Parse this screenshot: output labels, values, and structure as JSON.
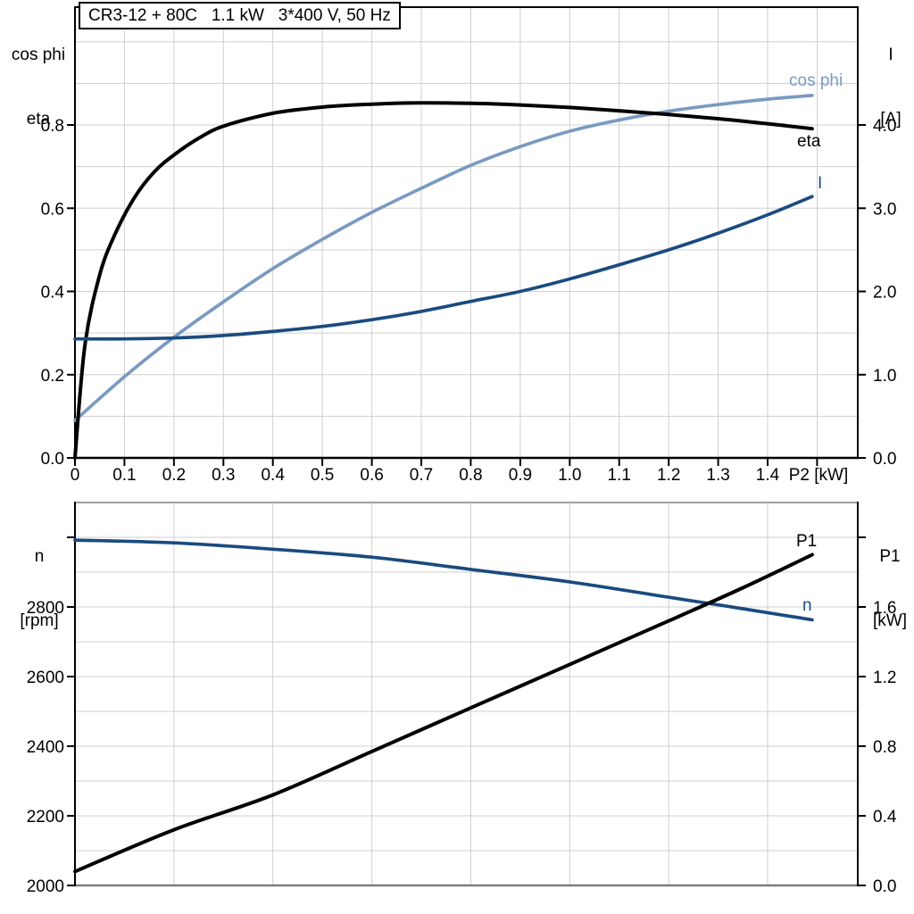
{
  "title_box": {
    "text": "CR3-12 + 80C   1.1 kW   3*400 V, 50 Hz"
  },
  "axes_headers": {
    "top_left_line1": "cos phi",
    "top_left_line2": "eta",
    "top_right_line1": "I",
    "top_right_line2": "[A]",
    "bottom_left_line1": "n",
    "bottom_left_line2": "[rpm]",
    "bottom_right_line1": "P1",
    "bottom_right_line2": "[kW]"
  },
  "colors": {
    "curve_black": "#000000",
    "curve_light_blue": "#7a9ac0",
    "curve_dark_blue": "#1a4b7f",
    "grid": "#cfcfcf",
    "axis": "#000000",
    "frame_gray_top": "#9e9e9e",
    "frame_gray_bottom": "#7f7f7f",
    "text": "#000000"
  },
  "chart_data": [
    {
      "type": "line",
      "title": "CR3-12 + 80C   1.1 kW   3*400 V, 50 Hz",
      "x_axis": {
        "label": "P2 [kW]",
        "min": 0,
        "max": 1.58,
        "grid_step": 0.1,
        "tick_values": [
          0,
          0.1,
          0.2,
          0.3,
          0.4,
          0.5,
          0.6,
          0.7,
          0.8,
          0.9,
          1.0,
          1.1,
          1.2,
          1.3,
          1.4,
          1.5
        ],
        "tick_labels": [
          "0",
          "0.1",
          "0.2",
          "0.3",
          "0.4",
          "0.5",
          "0.6",
          "0.7",
          "0.8",
          "0.9",
          "1.0",
          "1.1",
          "1.2",
          "1.3",
          "1.4",
          ""
        ]
      },
      "y_left": {
        "name": "cos phi / eta",
        "min": 0,
        "max": 1.083,
        "grid_step": 0.1,
        "tick_values": [
          0,
          0.2,
          0.4,
          0.6,
          0.8
        ],
        "tick_labels": [
          "0.0",
          "0.2",
          "0.4",
          "0.6",
          "0.8"
        ]
      },
      "y_right": {
        "name": "I [A]",
        "min": 0,
        "max": 5.42,
        "tick_values": [
          0,
          1,
          2,
          3,
          4
        ],
        "tick_labels": [
          "0.0",
          "1.0",
          "2.0",
          "3.0",
          "4.0"
        ]
      },
      "grid": true,
      "legend_position": "curve-end-labels",
      "series": [
        {
          "name": "cos phi",
          "label": "cos phi",
          "axis": "left",
          "color": "#7a9ac0",
          "stroke_width": 3.7,
          "points": [
            [
              0,
              0.09
            ],
            [
              0.1,
              0.195
            ],
            [
              0.2,
              0.29
            ],
            [
              0.3,
              0.375
            ],
            [
              0.4,
              0.455
            ],
            [
              0.5,
              0.525
            ],
            [
              0.6,
              0.59
            ],
            [
              0.7,
              0.648
            ],
            [
              0.8,
              0.703
            ],
            [
              0.9,
              0.748
            ],
            [
              1.0,
              0.785
            ],
            [
              1.1,
              0.812
            ],
            [
              1.2,
              0.833
            ],
            [
              1.3,
              0.849
            ],
            [
              1.4,
              0.862
            ],
            [
              1.49,
              0.871
            ]
          ]
        },
        {
          "name": "eta",
          "label": "eta",
          "axis": "left",
          "color": "#000000",
          "stroke_width": 4,
          "points": [
            [
              0,
              0
            ],
            [
              0.02,
              0.27
            ],
            [
              0.05,
              0.44
            ],
            [
              0.08,
              0.535
            ],
            [
              0.12,
              0.625
            ],
            [
              0.16,
              0.687
            ],
            [
              0.2,
              0.728
            ],
            [
              0.25,
              0.768
            ],
            [
              0.3,
              0.797
            ],
            [
              0.4,
              0.828
            ],
            [
              0.5,
              0.843
            ],
            [
              0.6,
              0.85
            ],
            [
              0.7,
              0.853
            ],
            [
              0.8,
              0.852
            ],
            [
              0.9,
              0.848
            ],
            [
              1.0,
              0.842
            ],
            [
              1.1,
              0.834
            ],
            [
              1.2,
              0.825
            ],
            [
              1.3,
              0.815
            ],
            [
              1.4,
              0.803
            ],
            [
              1.49,
              0.791
            ]
          ]
        },
        {
          "name": "I",
          "label": "I",
          "axis": "right",
          "color": "#1a4b7f",
          "stroke_width": 3.7,
          "points": [
            [
              0,
              1.43
            ],
            [
              0.1,
              1.43
            ],
            [
              0.2,
              1.44
            ],
            [
              0.3,
              1.47
            ],
            [
              0.4,
              1.52
            ],
            [
              0.5,
              1.58
            ],
            [
              0.6,
              1.66
            ],
            [
              0.7,
              1.76
            ],
            [
              0.8,
              1.88
            ],
            [
              0.9,
              2.0
            ],
            [
              1.0,
              2.15
            ],
            [
              1.1,
              2.32
            ],
            [
              1.2,
              2.5
            ],
            [
              1.3,
              2.7
            ],
            [
              1.4,
              2.92
            ],
            [
              1.49,
              3.14
            ]
          ]
        }
      ]
    },
    {
      "type": "line",
      "title": "",
      "x_axis": {
        "label": "",
        "min": 0,
        "max": 1.58,
        "grid_step": 0.2,
        "tick_values": [],
        "tick_labels": []
      },
      "y_left": {
        "name": "n [rpm]",
        "min": 2000,
        "max": 3100,
        "grid_step": 100,
        "tick_values": [
          2000,
          2200,
          2400,
          2600,
          2800,
          3000
        ],
        "tick_labels": [
          "2000",
          "2200",
          "2400",
          "2600",
          "2800",
          ""
        ]
      },
      "y_right": {
        "name": "P1 [kW]",
        "min": 0,
        "max": 2.2,
        "tick_values": [
          0,
          0.4,
          0.8,
          1.2,
          1.6,
          2.0
        ],
        "tick_labels": [
          "0.0",
          "0.4",
          "0.8",
          "1.2",
          "1.6",
          ""
        ]
      },
      "grid": true,
      "legend_position": "curve-end-labels",
      "series": [
        {
          "name": "n",
          "label": "n",
          "axis": "left",
          "color": "#1a4b7f",
          "stroke_width": 3.7,
          "points": [
            [
              0,
              2992
            ],
            [
              0.2,
              2984
            ],
            [
              0.4,
              2966
            ],
            [
              0.6,
              2943
            ],
            [
              0.8,
              2908
            ],
            [
              1.0,
              2872
            ],
            [
              1.2,
              2828
            ],
            [
              1.35,
              2795
            ],
            [
              1.49,
              2763
            ]
          ]
        },
        {
          "name": "P1",
          "label": "P1",
          "axis": "right",
          "color": "#000000",
          "stroke_width": 4,
          "points": [
            [
              0,
              0.08
            ],
            [
              0.2,
              0.32
            ],
            [
              0.4,
              0.52
            ],
            [
              0.6,
              0.77
            ],
            [
              0.8,
              1.02
            ],
            [
              1.0,
              1.27
            ],
            [
              1.2,
              1.52
            ],
            [
              1.35,
              1.71
            ],
            [
              1.49,
              1.9
            ]
          ]
        }
      ]
    }
  ]
}
